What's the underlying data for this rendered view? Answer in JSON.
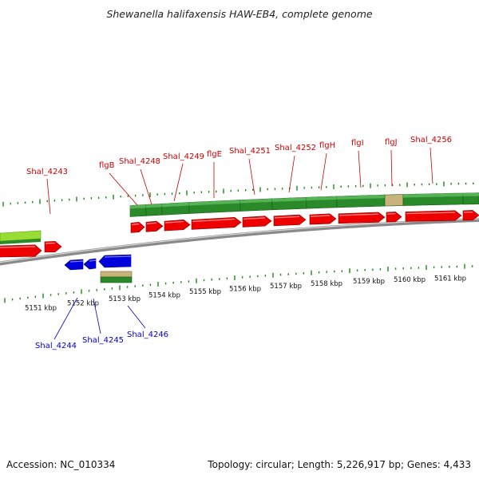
{
  "title": "Shewanella halifaxensis HAW-EB4, complete genome",
  "footer": {
    "accession": "Accession: NC_010334",
    "summary": "Topology: circular; Length: 5,226,917 bp; Genes: 4,433"
  },
  "colors": {
    "forward_cds": "#ee0000",
    "reverse_cds": "#0000dd",
    "gene_track": "#2a8a2a",
    "gene_track_light": "#99dd33",
    "pseudo_segment": "#c8b47a",
    "backbone": "#8a8a8a",
    "tick": "#1a8a1a",
    "forward_label": "#cc0000",
    "reverse_label": "#0000cc"
  },
  "scale": {
    "unit": "kbp",
    "ticks": [
      {
        "kbp": 5151,
        "label": "5151 kbp"
      },
      {
        "kbp": 5152,
        "label": "5152 kbp"
      },
      {
        "kbp": 5153,
        "label": "5153 kbp"
      },
      {
        "kbp": 5154,
        "label": "5154 kbp"
      },
      {
        "kbp": 5155,
        "label": "5155 kbp"
      },
      {
        "kbp": 5156,
        "label": "5156 kbp"
      },
      {
        "kbp": 5157,
        "label": "5157 kbp"
      },
      {
        "kbp": 5158,
        "label": "5158 kbp"
      },
      {
        "kbp": 5159,
        "label": "5159 kbp"
      },
      {
        "kbp": 5160,
        "label": "5160 kbp"
      },
      {
        "kbp": 5161,
        "label": "5161 kbp"
      }
    ]
  },
  "forward_genes": [
    {
      "name": "Shal_4243"
    },
    {
      "name": "flgB"
    },
    {
      "name": "Shal_4248"
    },
    {
      "name": "Shal_4249"
    },
    {
      "name": "flgE"
    },
    {
      "name": "Shal_4251"
    },
    {
      "name": "Shal_4252"
    },
    {
      "name": "flgH"
    },
    {
      "name": "flgI"
    },
    {
      "name": "flgJ"
    },
    {
      "name": "Shal_4256"
    }
  ],
  "reverse_genes": [
    {
      "name": "Shal_4244"
    },
    {
      "name": "Shal_4245"
    },
    {
      "name": "Shal_4246"
    }
  ]
}
